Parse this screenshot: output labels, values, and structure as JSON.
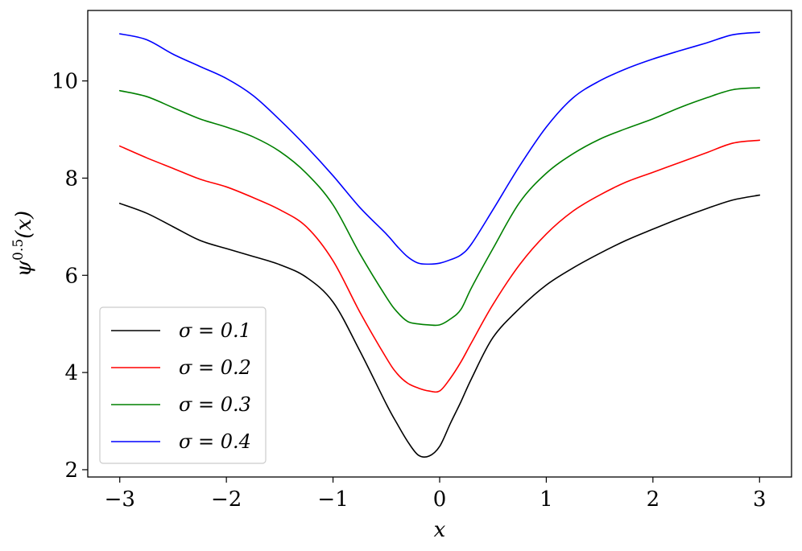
{
  "chart_data": {
    "type": "line",
    "xlabel": "x",
    "ylabel": "ψ^0.5(x)",
    "ylabel_base": "ψ",
    "ylabel_sup": "0.5",
    "ylabel_arg": "(x)",
    "xlim": [
      -3.3,
      3.3
    ],
    "ylim": [
      1.85,
      11.45
    ],
    "xticks": [
      -3,
      -2,
      -1,
      0,
      1,
      2,
      3
    ],
    "xtick_labels": [
      "−3",
      "−2",
      "−1",
      "0",
      "1",
      "2",
      "3"
    ],
    "yticks": [
      2,
      4,
      6,
      8,
      10
    ],
    "ytick_labels": [
      "2",
      "4",
      "6",
      "8",
      "10"
    ],
    "grid": false,
    "legend_position": "lower-left",
    "x": [
      -3,
      -2.75,
      -2.5,
      -2.25,
      -2,
      -1.75,
      -1.5,
      -1.25,
      -1,
      -0.75,
      -0.5,
      -0.4,
      -0.3,
      -0.2,
      -0.1,
      0,
      0.1,
      0.2,
      0.3,
      0.5,
      0.75,
      1,
      1.25,
      1.5,
      1.75,
      2,
      2.25,
      2.5,
      2.75,
      3
    ],
    "series": [
      {
        "name": "σ = 0.1",
        "legend_label": "σ = 0.1",
        "color": "#000000",
        "values": [
          7.48,
          7.28,
          7.0,
          6.72,
          6.55,
          6.39,
          6.22,
          5.96,
          5.45,
          4.45,
          3.35,
          2.95,
          2.58,
          2.3,
          2.28,
          2.48,
          2.95,
          3.4,
          3.88,
          4.72,
          5.32,
          5.8,
          6.15,
          6.45,
          6.72,
          6.95,
          7.17,
          7.37,
          7.55,
          7.65
        ]
      },
      {
        "name": "σ = 0.2",
        "legend_label": "σ = 0.2",
        "color": "#ff0000",
        "values": [
          8.66,
          8.42,
          8.2,
          7.98,
          7.82,
          7.6,
          7.35,
          7.0,
          6.3,
          5.25,
          4.3,
          3.98,
          3.78,
          3.68,
          3.62,
          3.62,
          3.88,
          4.22,
          4.62,
          5.4,
          6.22,
          6.85,
          7.32,
          7.65,
          7.92,
          8.12,
          8.32,
          8.52,
          8.72,
          8.78
        ]
      },
      {
        "name": "σ = 0.3",
        "legend_label": "σ = 0.3",
        "color": "#008000",
        "values": [
          9.8,
          9.68,
          9.45,
          9.22,
          9.05,
          8.85,
          8.55,
          8.1,
          7.45,
          6.45,
          5.55,
          5.25,
          5.05,
          5.0,
          4.98,
          4.98,
          5.1,
          5.3,
          5.75,
          6.55,
          7.5,
          8.1,
          8.5,
          8.8,
          9.02,
          9.22,
          9.45,
          9.65,
          9.82,
          9.86
        ]
      },
      {
        "name": "σ = 0.4",
        "legend_label": "σ = 0.4",
        "color": "#0000ff",
        "values": [
          10.97,
          10.85,
          10.55,
          10.3,
          10.05,
          9.7,
          9.2,
          8.65,
          8.05,
          7.4,
          6.85,
          6.6,
          6.38,
          6.25,
          6.23,
          6.25,
          6.32,
          6.42,
          6.65,
          7.35,
          8.25,
          9.05,
          9.65,
          10.0,
          10.25,
          10.45,
          10.62,
          10.78,
          10.95,
          11.0
        ]
      }
    ]
  }
}
